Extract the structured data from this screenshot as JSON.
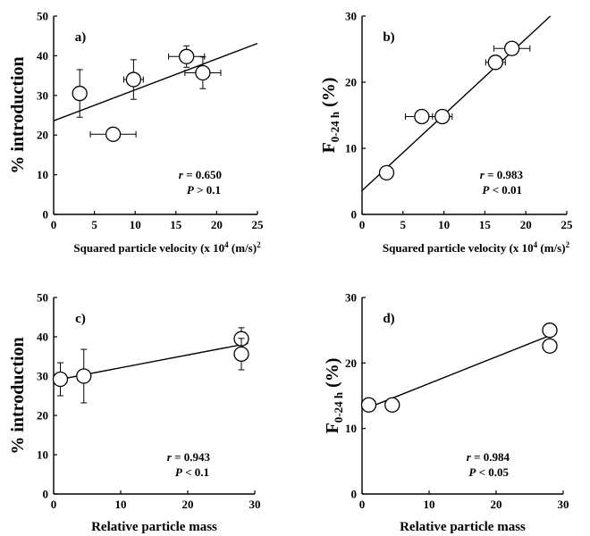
{
  "chart_data": [
    {
      "panel": "a)",
      "type": "scatter",
      "xlabel": "Squared particle velocity (x 10",
      "xlabel_sup": "4",
      "xlabel_tail": " (m/s)",
      "xlabel_tail_sup": "2",
      "ylabel": "% introduction",
      "xlim": [
        0,
        25
      ],
      "ylim": [
        0,
        50
      ],
      "xticks": [
        0,
        5,
        10,
        15,
        20,
        25
      ],
      "yticks": [
        0,
        10,
        20,
        30,
        40,
        50
      ],
      "points": [
        {
          "x": 3.2,
          "y": 30.5,
          "xerr": 0,
          "yerr": 6
        },
        {
          "x": 7.3,
          "y": 20.2,
          "xerr": 2.8,
          "yerr": 0
        },
        {
          "x": 9.8,
          "y": 34.0,
          "xerr": 1.2,
          "yerr": 5
        },
        {
          "x": 16.3,
          "y": 39.8,
          "xerr": 2.2,
          "yerr": 2.7
        },
        {
          "x": 18.3,
          "y": 35.7,
          "xerr": 2.2,
          "yerr": 4
        }
      ],
      "fit": {
        "x": [
          0,
          25
        ],
        "y": [
          23.6,
          43.1
        ]
      },
      "stat_r_label": "r",
      "stat_r_value": " = 0.650",
      "stat_p_label": "P",
      "stat_p_value": " > 0.1"
    },
    {
      "panel": "b)",
      "type": "scatter",
      "xlabel": "Squared particle velocity (x 10",
      "xlabel_sup": "4",
      "xlabel_tail": " (m/s)",
      "xlabel_tail_sup": "2",
      "ylabel": "F",
      "ylabel_sub": "0-24 h",
      "ylabel_tail": " (%)",
      "xlim": [
        0,
        25
      ],
      "ylim": [
        0,
        30
      ],
      "xticks": [
        0,
        5,
        10,
        15,
        20,
        25
      ],
      "yticks": [
        0,
        10,
        20,
        30
      ],
      "points": [
        {
          "x": 3.0,
          "y": 6.3,
          "xerr": 0,
          "yerr": 0
        },
        {
          "x": 7.3,
          "y": 14.8,
          "xerr": 2.0,
          "yerr": 0
        },
        {
          "x": 9.8,
          "y": 14.8,
          "xerr": 1.2,
          "yerr": 0
        },
        {
          "x": 16.3,
          "y": 23.0,
          "xerr": 1.2,
          "yerr": 0
        },
        {
          "x": 18.3,
          "y": 25.1,
          "xerr": 2.2,
          "yerr": 0
        }
      ],
      "fit": {
        "x": [
          0,
          23
        ],
        "y": [
          3.6,
          30
        ]
      },
      "stat_r_label": "r",
      "stat_r_value": " = 0.983",
      "stat_p_label": "P",
      "stat_p_value": " < 0.01"
    },
    {
      "panel": "c)",
      "type": "scatter",
      "xlabel": "Relative particle mass",
      "ylabel": "% introduction",
      "xlim": [
        0,
        30
      ],
      "ylim": [
        0,
        50
      ],
      "xticks": [
        0,
        10,
        20,
        30
      ],
      "yticks": [
        0,
        10,
        20,
        30,
        40,
        50
      ],
      "points": [
        {
          "x": 1.0,
          "y": 29.2,
          "xerr": 0,
          "yerr": 4.2
        },
        {
          "x": 4.5,
          "y": 30.0,
          "xerr": 0,
          "yerr": 6.8
        },
        {
          "x": 28.0,
          "y": 39.5,
          "xerr": 0,
          "yerr": 2.8
        },
        {
          "x": 28.0,
          "y": 35.6,
          "xerr": 0,
          "yerr": 4.0
        }
      ],
      "fit": {
        "x": [
          1,
          29
        ],
        "y": [
          29.2,
          38.3
        ]
      },
      "stat_r_label": "r",
      "stat_r_value": " = 0.943",
      "stat_p_label": "P",
      "stat_p_value": " < 0.1"
    },
    {
      "panel": "d)",
      "type": "scatter",
      "xlabel": "Relative particle mass",
      "ylabel": "F",
      "ylabel_sub": "0-24 h",
      "ylabel_tail": " (%)",
      "xlim": [
        0,
        30
      ],
      "ylim": [
        0,
        30
      ],
      "xticks": [
        0,
        10,
        20,
        30
      ],
      "yticks": [
        0,
        10,
        20,
        30
      ],
      "points": [
        {
          "x": 1.0,
          "y": 13.6,
          "xerr": 0,
          "yerr": 0
        },
        {
          "x": 4.5,
          "y": 13.6,
          "xerr": 0,
          "yerr": 0
        },
        {
          "x": 28.0,
          "y": 25.0,
          "xerr": 0,
          "yerr": 0
        },
        {
          "x": 28.0,
          "y": 22.6,
          "xerr": 0,
          "yerr": 0
        }
      ],
      "fit": {
        "x": [
          1,
          29
        ],
        "y": [
          13.2,
          24.6
        ]
      },
      "stat_r_label": "r",
      "stat_r_value": " = 0.984",
      "stat_p_label": "P",
      "stat_p_value": " < 0.05"
    }
  ]
}
